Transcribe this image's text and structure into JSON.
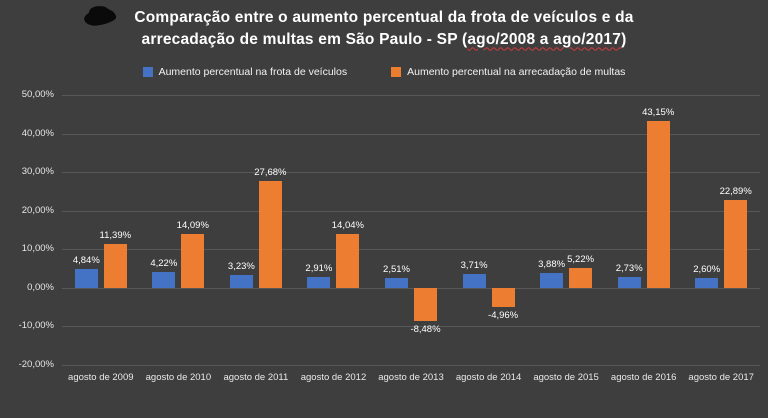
{
  "title": {
    "line1": "Comparação entre o aumento percentual da frota de veículos e da",
    "line2_prefix": "arrecadação de multas em São Paulo - SP (",
    "line2_underlined": "ago/2008 a ago/2017",
    "line2_suffix": ")"
  },
  "legend": [
    {
      "label": "Aumento percentual na frota de veículos",
      "color": "#4472C4"
    },
    {
      "label": "Aumento percentual na arrecadação de multas",
      "color": "#ED7D31"
    }
  ],
  "colors": {
    "background": "#3E3E3E",
    "gridline": "#585858",
    "text": "#FFFFFF",
    "series_frota": "#4472C4",
    "series_multas": "#ED7D31",
    "spellcheck_underline": "#D43B3B"
  },
  "chart_data": {
    "type": "bar",
    "title": "Comparação entre o aumento percentual da frota de veículos e da arrecadação de multas em São Paulo - SP (ago/2008 a ago/2017)",
    "categories": [
      "agosto de 2009",
      "agosto de 2010",
      "agosto de 2011",
      "agosto de 2012",
      "agosto de 2013",
      "agosto de 2014",
      "agosto de 2015",
      "agosto de 2016",
      "agosto de 2017"
    ],
    "series": [
      {
        "name": "Aumento percentual na frota de veículos",
        "color": "#4472C4",
        "values": [
          4.84,
          4.22,
          3.23,
          2.91,
          2.51,
          3.71,
          3.88,
          2.73,
          2.6
        ],
        "labels": [
          "4,84%",
          "4,22%",
          "3,23%",
          "2,91%",
          "2,51%",
          "3,71%",
          "3,88%",
          "2,73%",
          "2,60%"
        ]
      },
      {
        "name": "Aumento percentual na arrecadação de multas",
        "color": "#ED7D31",
        "values": [
          11.39,
          14.09,
          27.68,
          14.04,
          -8.48,
          -4.96,
          5.22,
          43.15,
          22.89
        ],
        "labels": [
          "11,39%",
          "14,09%",
          "27,68%",
          "14,04%",
          "-8,48%",
          "-4,96%",
          "5,22%",
          "43,15%",
          "22,89%"
        ]
      }
    ],
    "xlabel": "",
    "ylabel": "",
    "ylim": [
      -20,
      50
    ],
    "ytick_step": 10,
    "ytick_labels": [
      "50,00%",
      "40,00%",
      "30,00%",
      "20,00%",
      "10,00%",
      "0,00%",
      "-10,00%",
      "-20,00%"
    ],
    "grid": true,
    "legend_position": "top"
  }
}
